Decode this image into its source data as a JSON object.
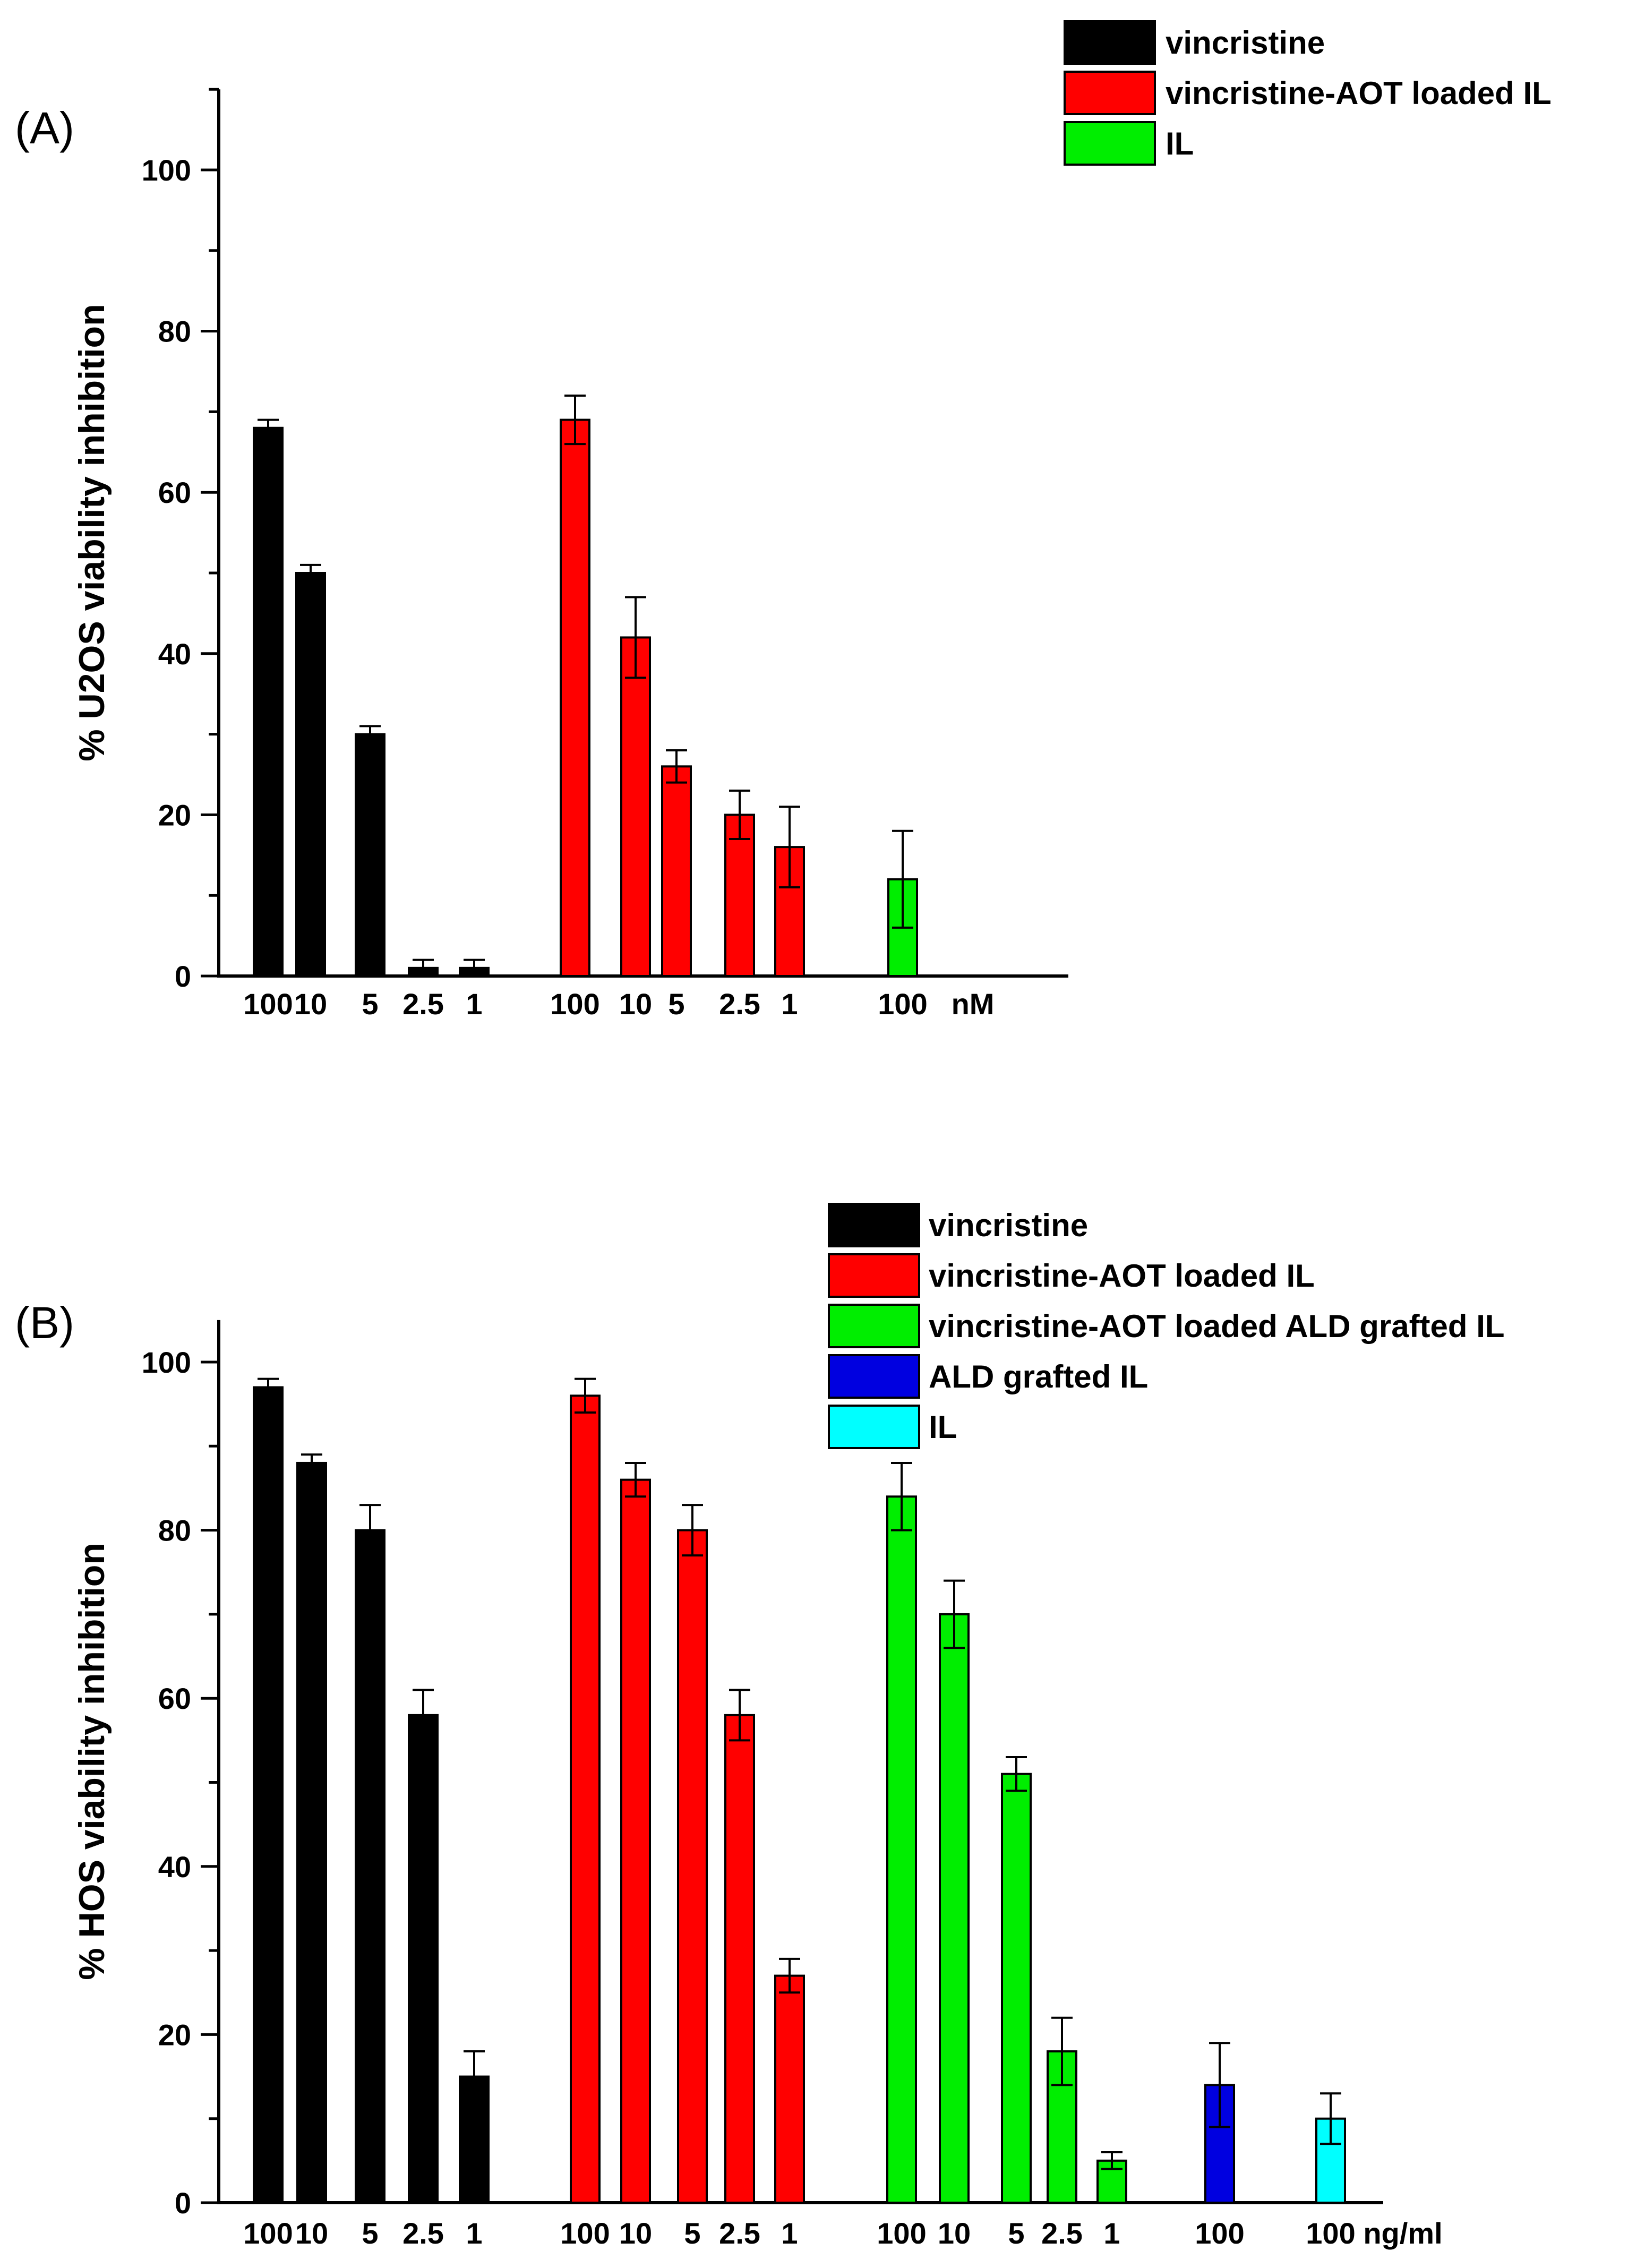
{
  "chart_data": [
    {
      "type": "bar",
      "panel_label": "(A)",
      "ylabel": "% U2OS viability inhibition",
      "ylim": [
        0,
        110
      ],
      "yticks": [
        0,
        20,
        40,
        60,
        80,
        100
      ],
      "unit_label": "nM",
      "legend_position": "top-right",
      "series": [
        {
          "name": "vincristine",
          "color": "#000000",
          "categories": [
            "100",
            "10",
            "5",
            "2.5",
            "1"
          ],
          "values": [
            68,
            50,
            30,
            1,
            1
          ],
          "errors": [
            1,
            1,
            1,
            1,
            1
          ]
        },
        {
          "name": "vincristine-AOT loaded IL",
          "color": "#ff0000",
          "categories": [
            "100",
            "10",
            "5",
            "2.5",
            "1"
          ],
          "values": [
            69,
            42,
            26,
            20,
            16
          ],
          "errors": [
            3,
            5,
            2,
            3,
            5
          ]
        },
        {
          "name": "IL",
          "color": "#00ee00",
          "categories": [
            "100"
          ],
          "values": [
            12
          ],
          "errors": [
            6
          ]
        }
      ]
    },
    {
      "type": "bar",
      "panel_label": "(B)",
      "ylabel": "% HOS viability inhibition",
      "ylim": [
        0,
        105
      ],
      "yticks": [
        0,
        20,
        40,
        60,
        80,
        100
      ],
      "unit_label": "ng/ml",
      "legend_position": "top-right",
      "series": [
        {
          "name": "vincristine",
          "color": "#000000",
          "categories": [
            "100",
            "10",
            "5",
            "2.5",
            "1"
          ],
          "values": [
            97,
            88,
            80,
            58,
            15
          ],
          "errors": [
            1,
            1,
            3,
            3,
            3
          ]
        },
        {
          "name": "vincristine-AOT loaded IL",
          "color": "#ff0000",
          "categories": [
            "100",
            "10",
            "5",
            "2.5",
            "1"
          ],
          "values": [
            96,
            86,
            80,
            58,
            27
          ],
          "errors": [
            2,
            2,
            3,
            3,
            2
          ]
        },
        {
          "name": "vincristine-AOT loaded ALD grafted IL",
          "color": "#00ee00",
          "categories": [
            "100",
            "10",
            "5",
            "2.5",
            "1"
          ],
          "values": [
            84,
            70,
            51,
            18,
            5
          ],
          "errors": [
            4,
            4,
            2,
            4,
            1
          ]
        },
        {
          "name": "ALD grafted IL",
          "color": "#0000e0",
          "categories": [
            "100"
          ],
          "values": [
            14
          ],
          "errors": [
            5
          ]
        },
        {
          "name": "IL",
          "color": "#00ffff",
          "categories": [
            "100"
          ],
          "values": [
            10
          ],
          "errors": [
            3
          ]
        }
      ]
    }
  ]
}
